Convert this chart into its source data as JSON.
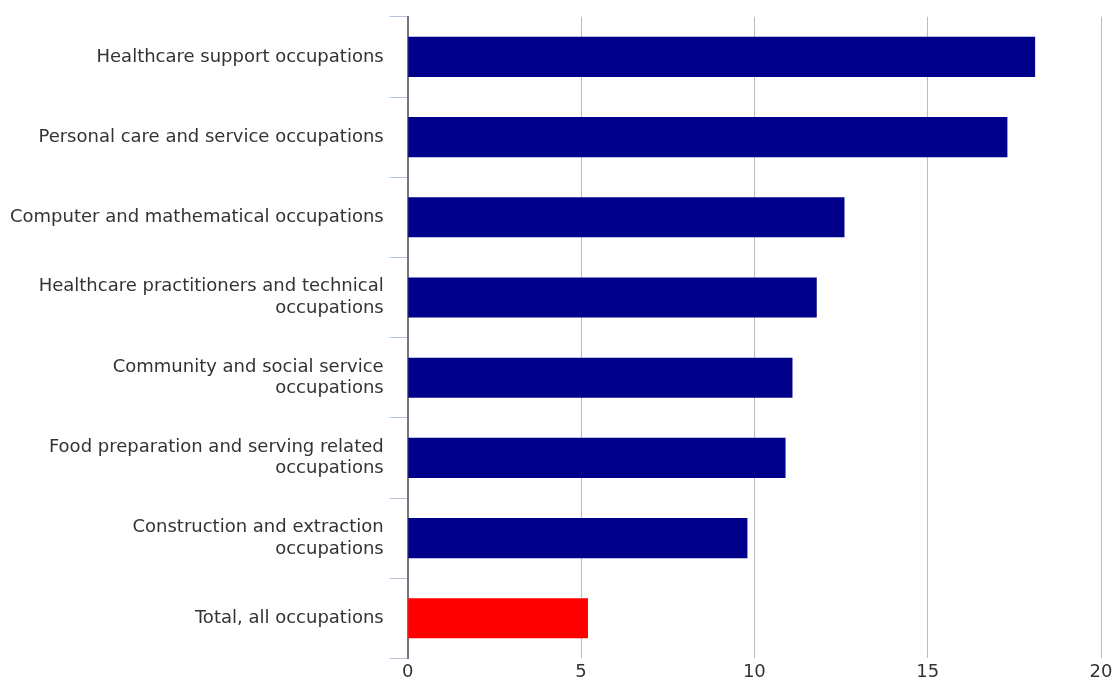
{
  "chart_data": {
    "type": "bar",
    "orientation": "horizontal",
    "categories": [
      "Healthcare support occupations",
      "Personal care and service occupations",
      "Computer and mathematical occupations",
      "Healthcare practitioners and technical occupations",
      "Community and social service occupations",
      "Food preparation and serving related occupations",
      "Construction and extraction occupations",
      "Total, all occupations"
    ],
    "values": [
      18.1,
      17.3,
      12.6,
      11.8,
      11.1,
      10.9,
      9.8,
      5.2
    ],
    "colors": [
      "#00008b",
      "#00008b",
      "#00008b",
      "#00008b",
      "#00008b",
      "#00008b",
      "#00008b",
      "#ff0000"
    ],
    "xlim": [
      0,
      20
    ],
    "xticks": [
      0,
      5,
      10,
      15,
      20
    ],
    "grid": "x",
    "legend": false
  }
}
